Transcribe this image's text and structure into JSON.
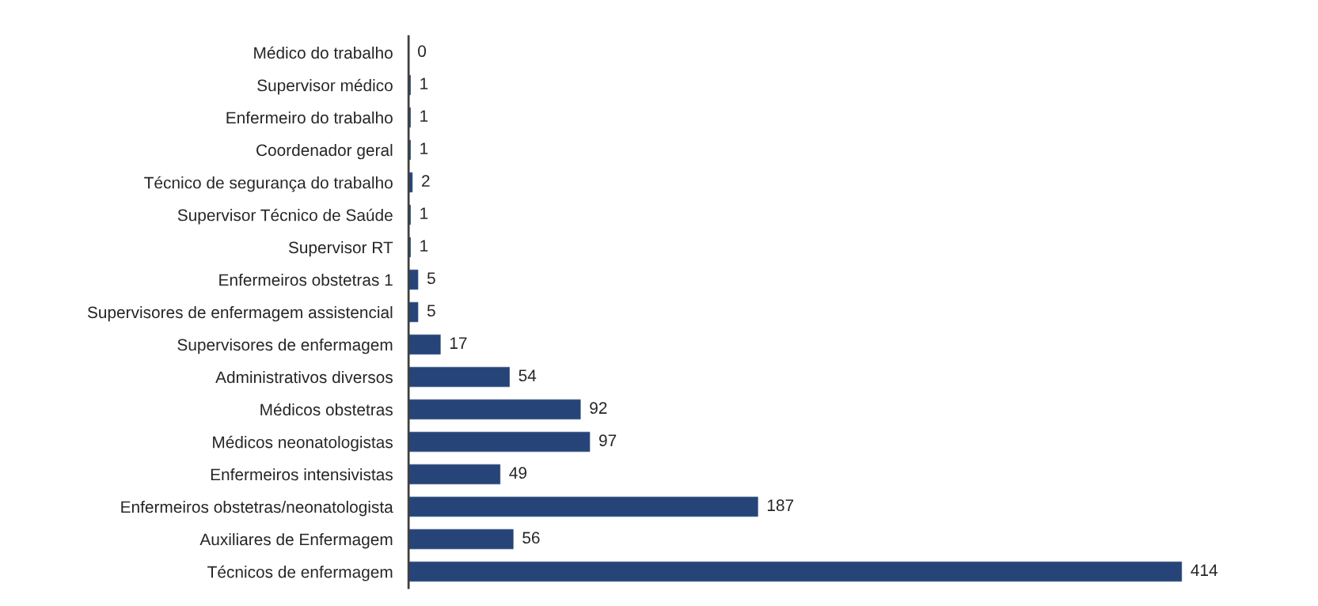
{
  "chart_data": {
    "type": "bar",
    "orientation": "horizontal",
    "color": "#264478",
    "data_labels": true,
    "grid": false,
    "legend": false,
    "categories": [
      "Médico do trabalho",
      "Supervisor médico",
      "Enfermeiro do trabalho",
      "Coordenador geral",
      "Técnico de segurança do trabalho",
      "Supervisor Técnico de Saúde",
      "Supervisor RT",
      "Enfermeiros obstetras 1",
      "Supervisores de enfermagem assistencial",
      "Supervisores de enfermagem",
      "Administrativos diversos",
      "Médicos obstetras",
      "Médicos neonatologistas",
      "Enfermeiros intensivistas",
      "Enfermeiros obstetras/neonatologista",
      "Auxiliares de Enfermagem",
      "Técnicos de enfermagem"
    ],
    "values": [
      0,
      1,
      1,
      1,
      2,
      1,
      1,
      5,
      5,
      17,
      54,
      92,
      97,
      49,
      187,
      56,
      414
    ]
  }
}
